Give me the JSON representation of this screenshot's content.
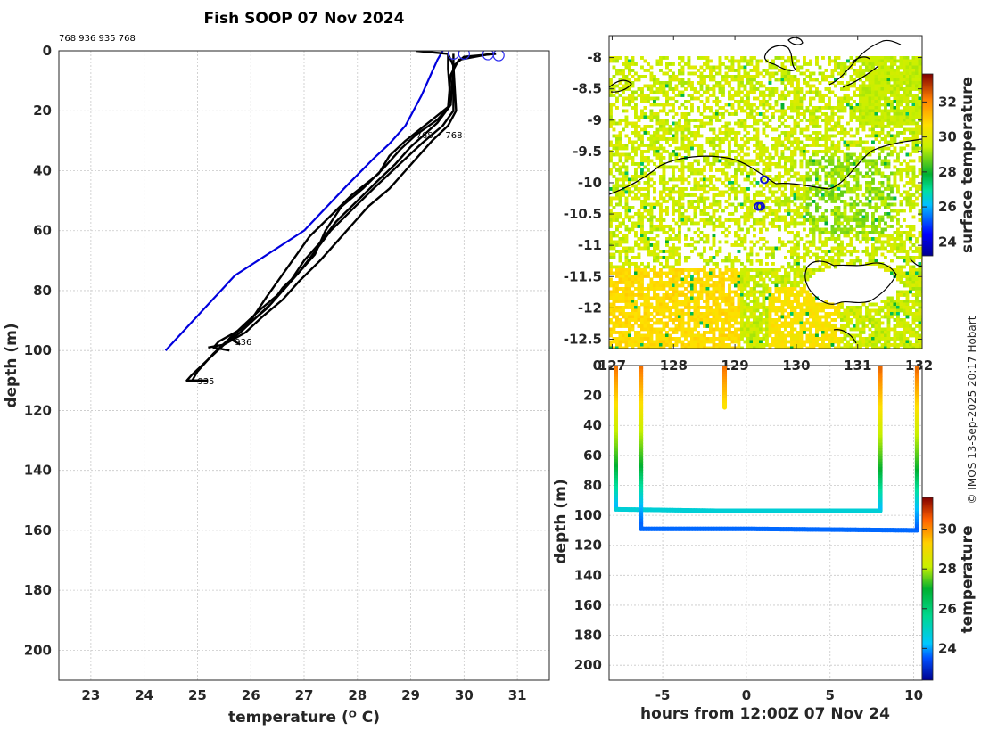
{
  "chart_data": [
    {
      "type": "line",
      "panel": "temperature-depth-profiles",
      "title": "Fish SOOP 07 Nov 2024",
      "xlabel": "temperature (ᴼ C)",
      "ylabel": "depth (m)",
      "xlim": [
        22.4,
        31.6
      ],
      "ylim": [
        210,
        0
      ],
      "xticks": [
        23,
        24,
        25,
        26,
        27,
        28,
        29,
        30,
        31
      ],
      "yticks": [
        0,
        20,
        40,
        60,
        80,
        100,
        120,
        140,
        160,
        180,
        200
      ],
      "header_ids": "768 936 935 768",
      "profile_labels": [
        {
          "text": "768",
          "t": 29.1,
          "d": 28
        },
        {
          "text": "768",
          "t": 29.65,
          "d": 28
        },
        {
          "text": "936",
          "t": 25.7,
          "d": 97
        },
        {
          "text": "935",
          "t": 25.0,
          "d": 110
        }
      ],
      "reference_series": {
        "name": "climatology",
        "color": "#0000dd",
        "points": [
          [
            29.6,
            0
          ],
          [
            29.5,
            3
          ],
          [
            29.4,
            7
          ],
          [
            29.2,
            15
          ],
          [
            28.9,
            25
          ],
          [
            28.6,
            31
          ],
          [
            28.3,
            36
          ],
          [
            27.8,
            45
          ],
          [
            27.0,
            60
          ],
          [
            25.7,
            75
          ],
          [
            24.4,
            100
          ]
        ]
      },
      "series": [
        {
          "name": "profile-1",
          "points": [
            [
              29.1,
              0
            ],
            [
              29.7,
              1
            ],
            [
              29.7,
              6
            ],
            [
              29.75,
              18
            ],
            [
              29.4,
              23
            ],
            [
              28.9,
              30
            ],
            [
              28.6,
              35
            ],
            [
              28.4,
              41
            ],
            [
              27.9,
              48
            ],
            [
              27.5,
              55
            ],
            [
              27.1,
              62
            ],
            [
              26.7,
              72
            ],
            [
              26.3,
              82
            ],
            [
              26.0,
              90
            ],
            [
              25.6,
              96
            ],
            [
              25.8,
              98
            ]
          ]
        },
        {
          "name": "profile-2",
          "points": [
            [
              29.7,
              1
            ],
            [
              29.8,
              5
            ],
            [
              29.75,
              18
            ],
            [
              29.5,
              24
            ],
            [
              29.0,
              32
            ],
            [
              28.7,
              38
            ],
            [
              28.4,
              43
            ],
            [
              28.0,
              50
            ],
            [
              27.6,
              57
            ],
            [
              27.3,
              64
            ],
            [
              27.0,
              70
            ],
            [
              26.7,
              78
            ],
            [
              26.3,
              86
            ],
            [
              25.9,
              92
            ],
            [
              25.4,
              97
            ],
            [
              25.3,
              99
            ],
            [
              25.6,
              100
            ]
          ]
        },
        {
          "name": "profile-3",
          "points": [
            [
              29.8,
              1
            ],
            [
              29.8,
              4
            ],
            [
              29.8,
              20
            ],
            [
              29.6,
              25
            ],
            [
              29.2,
              31
            ],
            [
              28.9,
              36
            ],
            [
              28.6,
              41
            ],
            [
              28.3,
              46
            ],
            [
              27.9,
              53
            ],
            [
              27.5,
              60
            ],
            [
              27.2,
              67
            ],
            [
              26.9,
              74
            ],
            [
              26.6,
              80
            ],
            [
              26.2,
              86
            ],
            [
              25.9,
              91
            ],
            [
              25.6,
              96
            ],
            [
              25.3,
              101
            ],
            [
              25.0,
              107
            ],
            [
              24.9,
              110
            ],
            [
              25.2,
              110
            ]
          ]
        },
        {
          "name": "profile-4",
          "points": [
            [
              30.6,
              1
            ],
            [
              30.0,
              2
            ],
            [
              29.8,
              5
            ],
            [
              29.85,
              20
            ],
            [
              29.7,
              25
            ],
            [
              29.4,
              30
            ],
            [
              29.2,
              34
            ],
            [
              28.9,
              40
            ],
            [
              28.6,
              46
            ],
            [
              28.2,
              52
            ],
            [
              27.9,
              58
            ],
            [
              27.6,
              64
            ],
            [
              27.3,
              70
            ],
            [
              26.9,
              77
            ],
            [
              26.6,
              83
            ],
            [
              26.2,
              89
            ],
            [
              25.9,
              94
            ],
            [
              25.5,
              98
            ],
            [
              25.2,
              103
            ],
            [
              24.9,
              108
            ],
            [
              24.8,
              110
            ],
            [
              25.1,
              110
            ]
          ]
        },
        {
          "name": "profile-5",
          "points": [
            [
              30.5,
              1
            ],
            [
              29.9,
              3
            ],
            [
              29.75,
              8
            ],
            [
              29.7,
              19
            ],
            [
              29.5,
              23
            ],
            [
              29.1,
              28
            ],
            [
              28.8,
              33
            ],
            [
              28.5,
              39
            ],
            [
              28.1,
              46
            ],
            [
              27.7,
              52
            ],
            [
              27.4,
              60
            ],
            [
              27.2,
              68
            ],
            [
              26.9,
              74
            ],
            [
              26.6,
              79
            ],
            [
              26.4,
              84
            ],
            [
              26.1,
              89
            ],
            [
              25.8,
              94
            ],
            [
              25.5,
              98
            ],
            [
              25.2,
              99
            ]
          ]
        }
      ],
      "surface_markers": [
        [
          29.8,
          1
        ],
        [
          30.0,
          1
        ],
        [
          30.45,
          1.2
        ],
        [
          30.65,
          1.5
        ]
      ]
    },
    {
      "type": "heatmap",
      "panel": "surface-temperature-map",
      "colorbar_label": "surface temperature",
      "colorbar_ticks": [
        24,
        26,
        28,
        30,
        32
      ],
      "colorbar_range": [
        23.2,
        33.6
      ],
      "xlim": [
        126.95,
        132.05
      ],
      "ylim": [
        -12.65,
        -7.65
      ],
      "xticks": [
        127,
        128,
        129,
        130,
        131,
        132
      ],
      "xtick_labels": [
        "127",
        "128",
        "129",
        "130",
        "131",
        "132"
      ],
      "yticks": [
        -8,
        -8.5,
        -9,
        -9.5,
        -10,
        -10.5,
        -11,
        -11.5,
        -12,
        -12.5
      ],
      "ytick_labels": [
        "-8",
        "-8.5",
        "-9",
        "-9.5",
        "-10",
        "-10.5",
        "-11",
        "-11.5",
        "-12",
        "-12.5"
      ],
      "ship_positions": [
        [
          129.48,
          -9.95
        ],
        [
          129.42,
          -10.38
        ],
        [
          129.38,
          -10.38
        ]
      ]
    },
    {
      "type": "scatter",
      "panel": "depth-time-section",
      "xlabel": "hours from 12:00Z 07 Nov 24",
      "ylabel": "depth (m)",
      "colorbar_label": "temperature",
      "colorbar_ticks": [
        24,
        26,
        28,
        30
      ],
      "colorbar_range": [
        22.4,
        31.6
      ],
      "xlim": [
        -8.2,
        10.5
      ],
      "ylim": [
        210,
        0
      ],
      "xticks": [
        -5,
        0,
        5,
        10
      ],
      "yticks": [
        0,
        20,
        40,
        60,
        80,
        100,
        120,
        140,
        160,
        180,
        200
      ],
      "ytick_labels": [
        "0",
        "20",
        "40",
        "60",
        "80",
        "100",
        "120",
        "140",
        "160",
        "180",
        "200"
      ],
      "tracks": [
        {
          "name": "cast-1",
          "points": [
            [
              -7.8,
              0
            ],
            [
              -7.8,
              96
            ],
            [
              -1.5,
              97
            ],
            [
              8.0,
              97
            ],
            [
              8.0,
              0
            ]
          ]
        },
        {
          "name": "cast-2",
          "points": [
            [
              -6.3,
              0
            ],
            [
              -6.3,
              109
            ],
            [
              0,
              109
            ],
            [
              10.2,
              110
            ],
            [
              10.2,
              0
            ]
          ]
        },
        {
          "name": "cast-3",
          "points": [
            [
              -1.3,
              0
            ],
            [
              -1.3,
              28
            ]
          ]
        }
      ]
    }
  ],
  "credit": "© IMOS 13-Sep-2025 20:17 Hobart"
}
